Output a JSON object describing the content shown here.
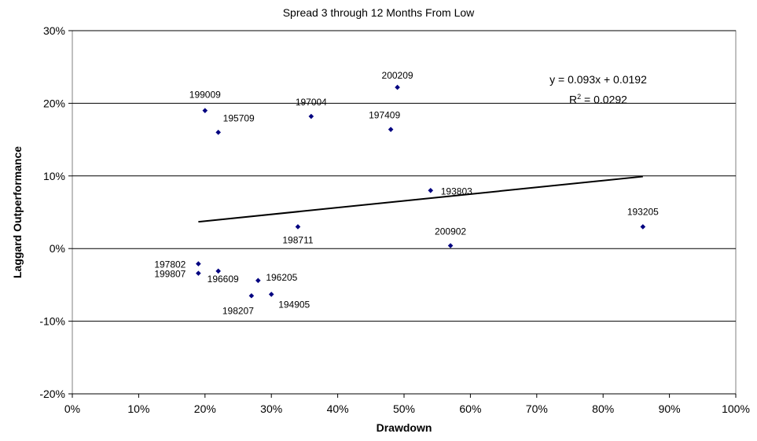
{
  "chart_data": {
    "type": "scatter",
    "title": "Spread 3 through 12 Months From Low",
    "xlabel": "Drawdown",
    "ylabel": "Laggard Outperformance",
    "xlim": [
      0,
      100
    ],
    "ylim": [
      -20,
      30
    ],
    "x_ticks": [
      "0%",
      "10%",
      "20%",
      "30%",
      "40%",
      "50%",
      "60%",
      "70%",
      "80%",
      "90%",
      "100%"
    ],
    "y_ticks": [
      "30%",
      "20%",
      "10%",
      "0%",
      "-10%",
      "-20%"
    ],
    "marker_color": "#000080",
    "points": [
      {
        "label": "199009",
        "x": 20,
        "y": 19.0
      },
      {
        "label": "195709",
        "x": 22,
        "y": 16.0
      },
      {
        "label": "197004",
        "x": 36,
        "y": 18.2
      },
      {
        "label": "200209",
        "x": 49,
        "y": 22.2
      },
      {
        "label": "197409",
        "x": 48,
        "y": 16.4
      },
      {
        "label": "193803",
        "x": 54,
        "y": 8.0
      },
      {
        "label": "193205",
        "x": 86,
        "y": 3.0
      },
      {
        "label": "198711",
        "x": 34,
        "y": 3.0
      },
      {
        "label": "200902",
        "x": 57,
        "y": 0.4
      },
      {
        "label": "197802",
        "x": 19,
        "y": -2.1
      },
      {
        "label": "199807",
        "x": 19,
        "y": -3.4
      },
      {
        "label": "196609",
        "x": 22,
        "y": -3.1
      },
      {
        "label": "196205",
        "x": 28,
        "y": -4.4
      },
      {
        "label": "198207",
        "x": 27,
        "y": -6.5
      },
      {
        "label": "194905",
        "x": 30,
        "y": -6.3
      }
    ],
    "trendline": {
      "slope_pct": 0.093,
      "intercept_pct": 1.92,
      "x_range": [
        19,
        86
      ],
      "equation": "y = 0.093x + 0.0192",
      "r2_prefix": "R",
      "r2_exp": "2",
      "r2_value": " = 0.0292"
    }
  }
}
